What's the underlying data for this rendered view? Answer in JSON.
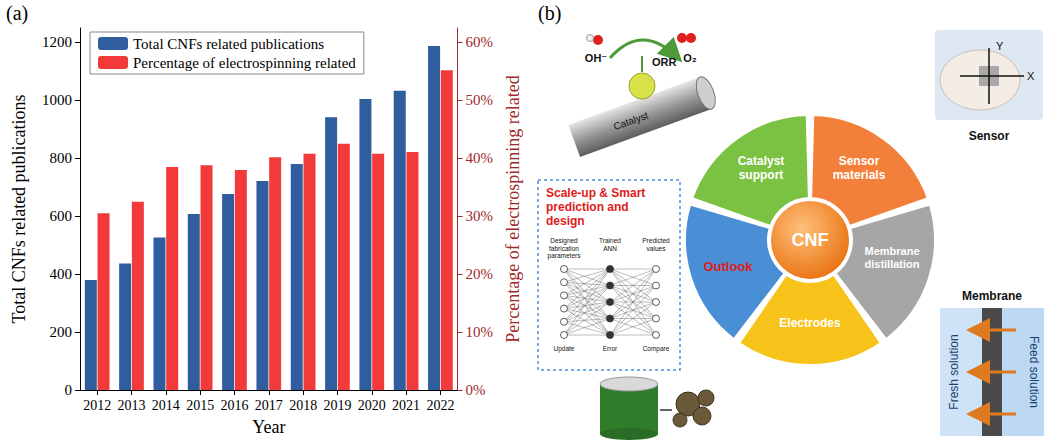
{
  "panels": [
    "(a)",
    "(b)"
  ],
  "chart_data": {
    "type": "bar",
    "categories": [
      "2012",
      "2013",
      "2014",
      "2015",
      "2016",
      "2017",
      "2018",
      "2019",
      "2020",
      "2021",
      "2022"
    ],
    "series": [
      {
        "name": "Total CNFs related publications",
        "color": "#2f5d9e",
        "values": [
          380,
          437,
          527,
          608,
          677,
          722,
          780,
          942,
          1005,
          1033,
          1188
        ]
      },
      {
        "name": "Percentage of electrospinning related",
        "color": "#f23a3a",
        "axis": "y2",
        "values": [
          30.5,
          32.5,
          38.5,
          38.8,
          38.0,
          40.2,
          40.8,
          42.5,
          40.8,
          41.1,
          55.2
        ]
      }
    ],
    "x_label": "Year",
    "y_label": "Total CNFs related publications",
    "y2_label": "Percentage of electrospinning related",
    "ylim": [
      0,
      1250
    ],
    "yticks": [
      0,
      200,
      400,
      600,
      800,
      1000,
      1200
    ],
    "y2lim": [
      0,
      62.5
    ],
    "y2ticks": [
      {
        "value": 0,
        "label": "0%"
      },
      {
        "value": 10,
        "label": "10%"
      },
      {
        "value": 20,
        "label": "20%"
      },
      {
        "value": 30,
        "label": "30%"
      },
      {
        "value": 40,
        "label": "40%"
      },
      {
        "value": 50,
        "label": "50%"
      },
      {
        "value": 60,
        "label": "60%"
      }
    ],
    "grid": false,
    "legend": "upper left"
  },
  "diagram": {
    "center": "CNF",
    "segments": [
      "Catalyst support",
      "Sensor materials",
      "Membrane distillation",
      "Electrodes",
      "Outlook"
    ],
    "catalyst_icon": {
      "reaction": "ORR",
      "reactant": "OH⁻",
      "product": "O₂",
      "label": "Catalyst"
    },
    "sensor_icon": {
      "axis_x": "X",
      "axis_y": "Y",
      "caption": "Sensor"
    },
    "membrane_icon": {
      "caption": "Membrane",
      "left": "Fresh solution",
      "right": "Feed solution"
    },
    "outlook_box": {
      "title": "Scale-up & Smart prediction and design",
      "columns": [
        "Designed fabrication parameters",
        "Trained ANN",
        "Predicted values"
      ],
      "footer": [
        "Update",
        "Error",
        "Compare"
      ]
    }
  }
}
